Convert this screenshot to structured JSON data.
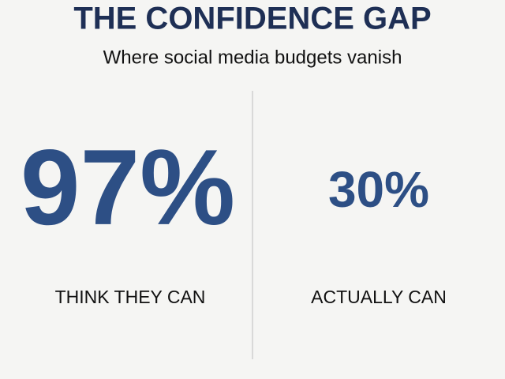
{
  "header": {
    "title": "THE CONFIDENCE GAP",
    "subtitle": "Where social media budgets vanish"
  },
  "stats": [
    {
      "value": "97%",
      "label": "THINK THEY CAN"
    },
    {
      "value": "30%",
      "label": "ACTUALLY CAN"
    }
  ]
}
